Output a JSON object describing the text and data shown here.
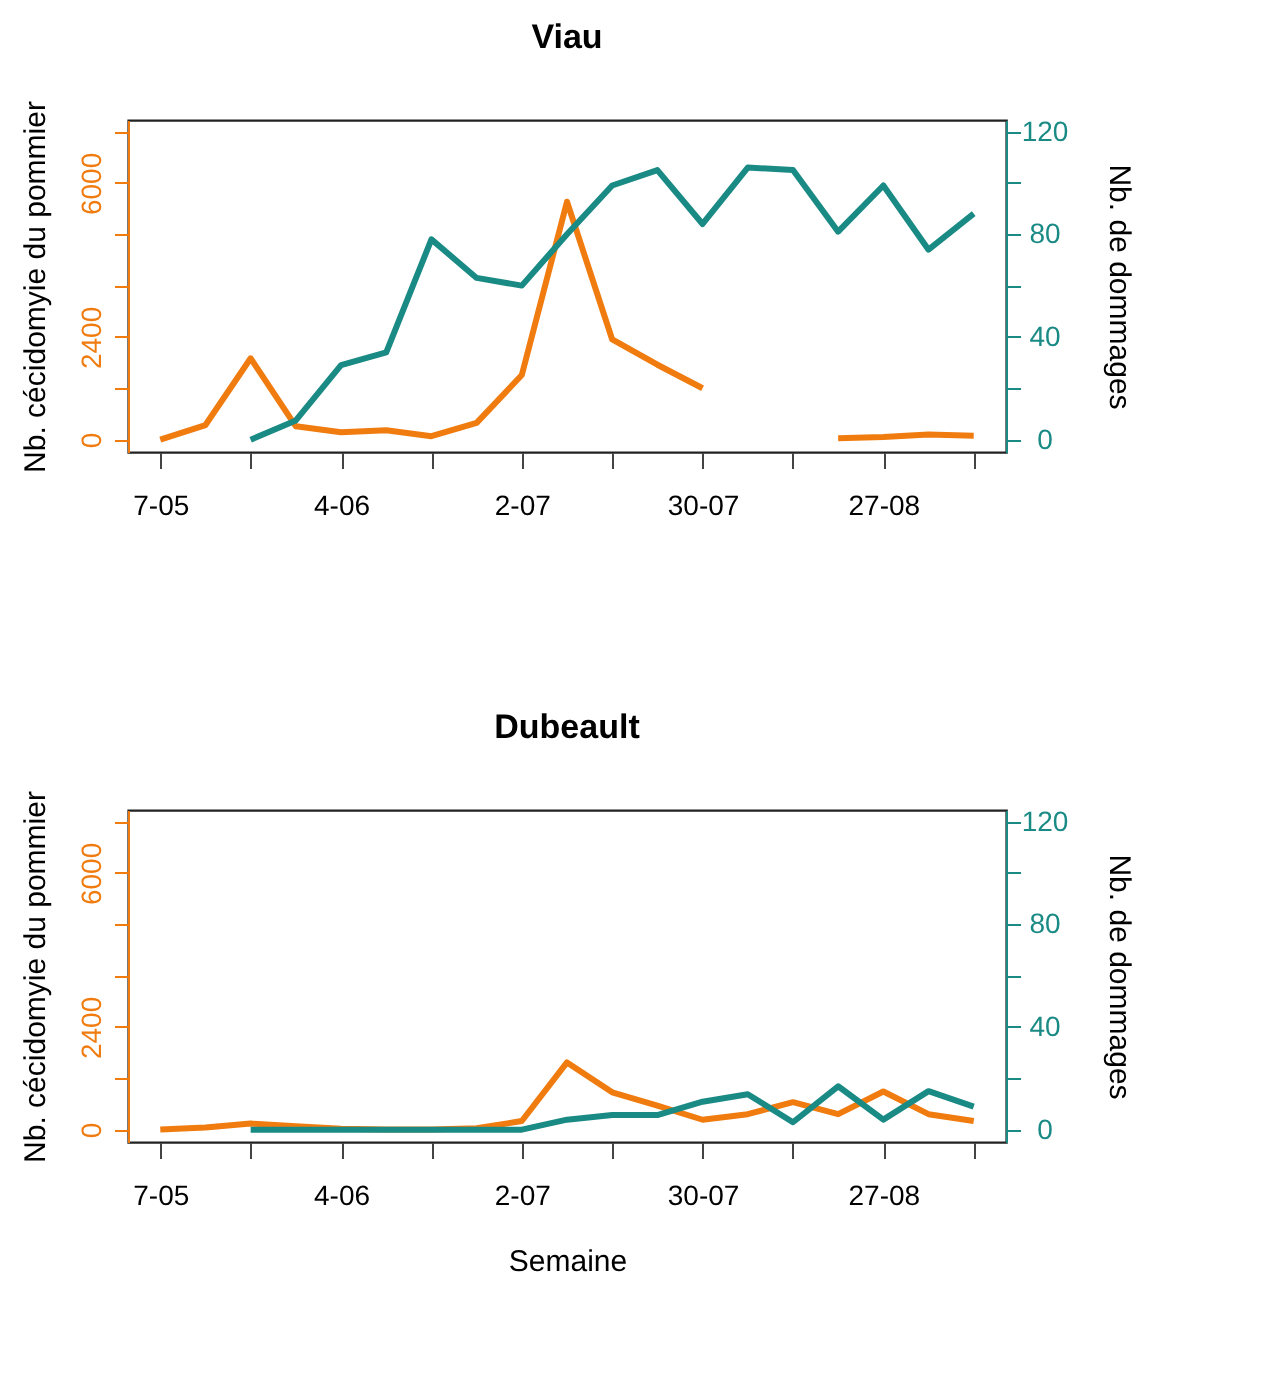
{
  "chart_data": [
    {
      "type": "line",
      "title": "Viau",
      "ylabel": "Nb. cécidomyie du pommier",
      "y2label": "Nb. de dommages",
      "x": [
        "--05-07",
        "--05-14",
        "--05-21",
        "--05-28",
        "--06-04",
        "--06-11",
        "--06-18",
        "--06-25",
        "--07-02",
        "--07-09",
        "--07-16",
        "--07-23",
        "--07-30",
        "--08-06",
        "--08-13",
        "--08-20",
        "--08-27",
        "--09-03",
        "--09-10"
      ],
      "xlim": [
        "--05-02",
        "--09-15"
      ],
      "xticks": [
        {
          "value": "--05-07",
          "label": "7-05"
        },
        {
          "value": "--05-21",
          "label": null
        },
        {
          "value": "--06-04",
          "label": "4-06"
        },
        {
          "value": "--06-18",
          "label": null
        },
        {
          "value": "--07-02",
          "label": "2-07"
        },
        {
          "value": "--07-16",
          "label": null
        },
        {
          "value": "--07-30",
          "label": "30-07"
        },
        {
          "value": "--08-13",
          "label": null
        },
        {
          "value": "--08-27",
          "label": "27-08"
        },
        {
          "value": "--09-10",
          "label": null
        }
      ],
      "ylim": [
        -290,
        7470
      ],
      "yticks": [
        0,
        {
          "value": 1200,
          "label": null
        },
        2400,
        {
          "value": 3600,
          "label": null
        },
        {
          "value": 4800,
          "label": null
        },
        6000,
        {
          "value": 7200,
          "label": null
        }
      ],
      "y2lim": [
        -4.8,
        124.5
      ],
      "y2ticks": [
        0,
        {
          "value": 20,
          "label": null
        },
        40,
        {
          "value": 60,
          "label": null
        },
        80,
        {
          "value": 100,
          "label": null
        },
        120
      ],
      "grid": false,
      "series": [
        {
          "color": "#f07b0f",
          "values": [
            0,
            340,
            1900,
            310,
            170,
            220,
            80,
            390,
            1510,
            5560,
            2340,
            1750,
            1200,
            null,
            null,
            30,
            60,
            120,
            90
          ]
        },
        {
          "color": "#1a8a85",
          "axis": "y2",
          "values": [
            null,
            null,
            0,
            7.5,
            29,
            34,
            78,
            63,
            60,
            80,
            99,
            105,
            84,
            106,
            105,
            81,
            99,
            74,
            88
          ]
        }
      ]
    },
    {
      "type": "line",
      "title": "Dubeault",
      "xlabel": "Semaine",
      "ylabel": "Nb. cécidomyie du pommier",
      "y2label": "Nb. de dommages",
      "x": [
        "--05-07",
        "--05-14",
        "--05-21",
        "--05-28",
        "--06-04",
        "--06-11",
        "--06-18",
        "--06-25",
        "--07-02",
        "--07-09",
        "--07-16",
        "--07-23",
        "--07-30",
        "--08-06",
        "--08-13",
        "--08-20",
        "--08-27",
        "--09-03",
        "--09-10"
      ],
      "xlim": [
        "--05-02",
        "--09-15"
      ],
      "xticks": [
        {
          "value": "--05-07",
          "label": "7-05"
        },
        {
          "value": "--05-21",
          "label": null
        },
        {
          "value": "--06-04",
          "label": "4-06"
        },
        {
          "value": "--06-18",
          "label": null
        },
        {
          "value": "--07-02",
          "label": "2-07"
        },
        {
          "value": "--07-16",
          "label": null
        },
        {
          "value": "--07-30",
          "label": "30-07"
        },
        {
          "value": "--08-13",
          "label": null
        },
        {
          "value": "--08-27",
          "label": "27-08"
        },
        {
          "value": "--09-10",
          "label": null
        }
      ],
      "ylim": [
        -290,
        7470
      ],
      "yticks": [
        0,
        {
          "value": 1200,
          "label": null
        },
        2400,
        {
          "value": 3600,
          "label": null
        },
        {
          "value": 4800,
          "label": null
        },
        6000,
        {
          "value": 7200,
          "label": null
        }
      ],
      "y2lim": [
        -4.8,
        124.5
      ],
      "y2ticks": [
        0,
        {
          "value": 20,
          "label": null
        },
        40,
        {
          "value": 60,
          "label": null
        },
        80,
        {
          "value": 100,
          "label": null
        },
        120
      ],
      "grid": false,
      "series": [
        {
          "color": "#f07b0f",
          "values": [
            0,
            50,
            140,
            80,
            20,
            0,
            0,
            30,
            200,
            1570,
            870,
            560,
            230,
            360,
            640,
            360,
            890,
            360,
            200
          ]
        },
        {
          "color": "#1a8a85",
          "axis": "y2",
          "values": [
            null,
            null,
            0,
            0,
            0,
            0,
            0,
            0,
            0,
            3.9,
            5.7,
            5.7,
            10.9,
            13.8,
            2.9,
            16.9,
            3.9,
            15,
            9
          ]
        }
      ]
    }
  ]
}
